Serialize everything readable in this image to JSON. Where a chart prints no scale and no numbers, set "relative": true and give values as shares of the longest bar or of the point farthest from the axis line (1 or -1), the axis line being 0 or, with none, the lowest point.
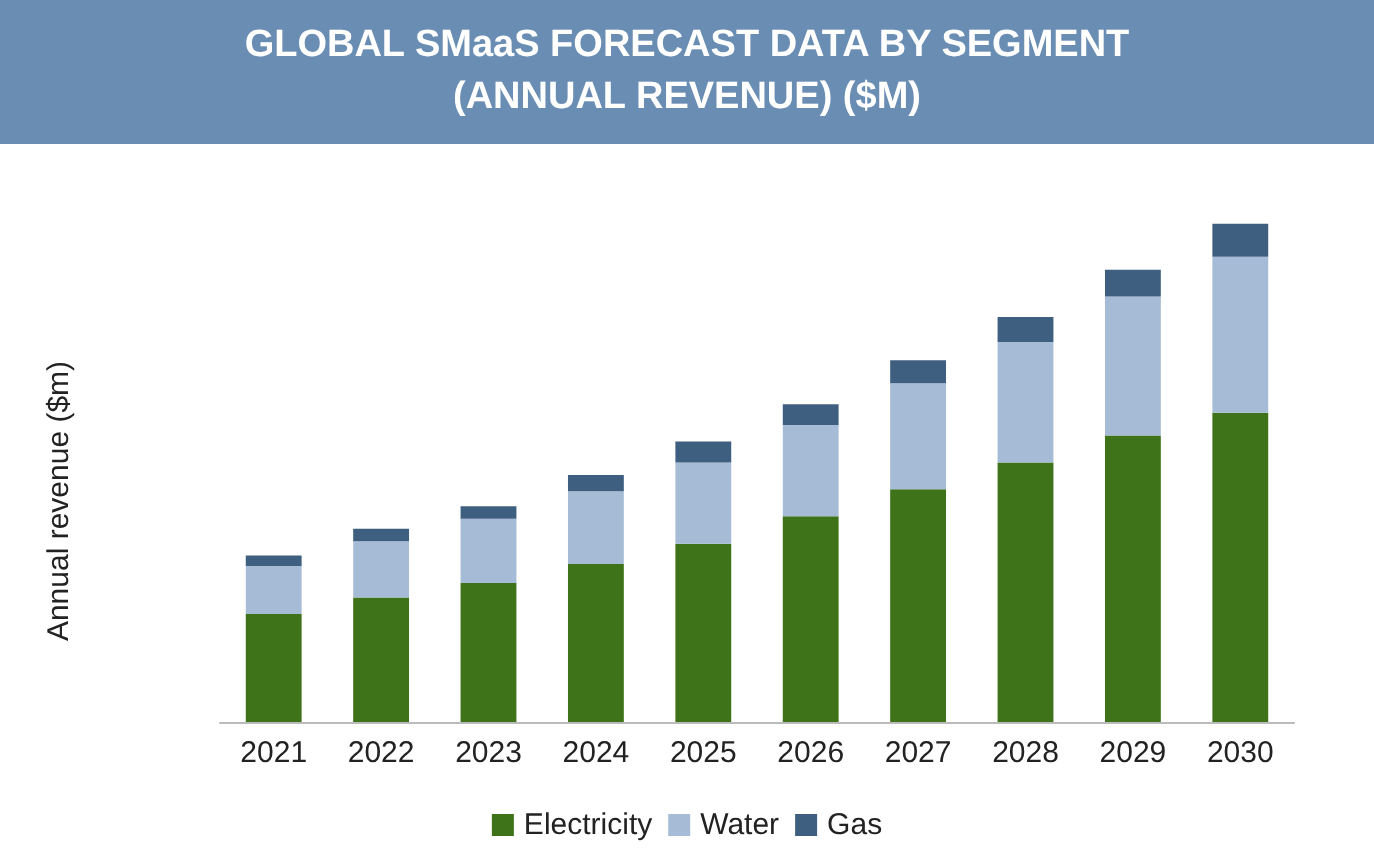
{
  "chart_data": {
    "type": "bar",
    "title": "GLOBAL SMaaS FORECAST DATA BY SEGMENT (ANNUAL REVENUE) ($M)",
    "ylabel": "Annual revenue ($m)",
    "categories": [
      "2021",
      "2022",
      "2023",
      "2024",
      "2025",
      "2026",
      "2027",
      "2028",
      "2029",
      "2030"
    ],
    "stacked": true,
    "relative": true,
    "legend": "bottom",
    "series": [
      {
        "name": "Electricity",
        "color": "#3f7319",
        "values": [
          0.217,
          0.25,
          0.279,
          0.317,
          0.358,
          0.413,
          0.467,
          0.521,
          0.575,
          0.621
        ]
      },
      {
        "name": "Water",
        "color": "#a6bcd6",
        "values": [
          0.096,
          0.113,
          0.129,
          0.146,
          0.163,
          0.183,
          0.213,
          0.242,
          0.279,
          0.313
        ]
      },
      {
        "name": "Gas",
        "color": "#3f5f80",
        "values": [
          0.021,
          0.025,
          0.025,
          0.033,
          0.042,
          0.042,
          0.046,
          0.05,
          0.054,
          0.066
        ]
      }
    ]
  }
}
